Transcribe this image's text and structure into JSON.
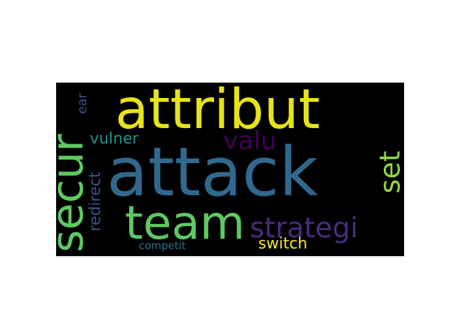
{
  "background_color": "#000000",
  "words": [
    {
      "text": "attack",
      "color": "#31688e"
    },
    {
      "text": "attribut",
      "color": "#e6e419"
    },
    {
      "text": "team",
      "color": "#5ec962"
    },
    {
      "text": "secur",
      "color": "#5ec962"
    },
    {
      "text": "strategi",
      "color": "#472d7b"
    },
    {
      "text": "valu",
      "color": "#440154"
    },
    {
      "text": "set",
      "color": "#8fd744"
    },
    {
      "text": "switch",
      "color": "#fde725"
    },
    {
      "text": "vulner",
      "color": "#21918c"
    },
    {
      "text": "redirect",
      "color": "#3b528b"
    },
    {
      "text": "ear",
      "color": "#3b528b"
    },
    {
      "text": "competit",
      "color": "#2c728e"
    }
  ]
}
